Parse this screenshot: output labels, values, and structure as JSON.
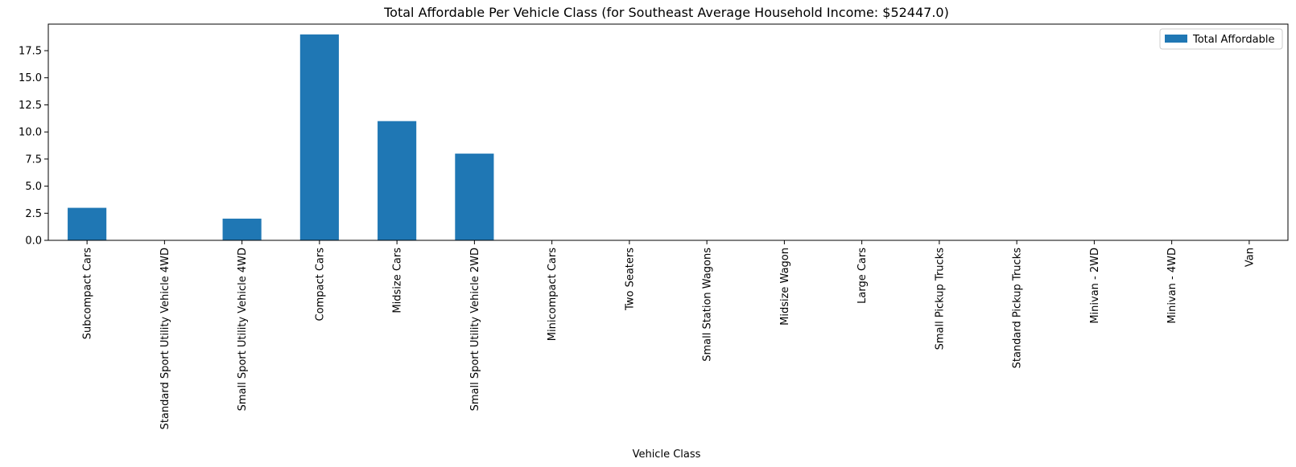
{
  "chart_data": {
    "type": "bar",
    "title": "Total Affordable Per Vehicle Class (for Southeast Average Household Income: $52447.0)",
    "xlabel": "Vehicle Class",
    "ylabel": "",
    "ylim": [
      0,
      19.95
    ],
    "yticks": [
      0.0,
      2.5,
      5.0,
      7.5,
      10.0,
      12.5,
      15.0,
      17.5
    ],
    "ytick_labels": [
      "0.0",
      "2.5",
      "5.0",
      "7.5",
      "10.0",
      "12.5",
      "15.0",
      "17.5"
    ],
    "categories": [
      "Subcompact Cars",
      "Standard Sport Utility Vehicle 4WD",
      "Small Sport Utility Vehicle 4WD",
      "Compact Cars",
      "Midsize Cars",
      "Small Sport Utility Vehicle 2WD",
      "Minicompact Cars",
      "Two Seaters",
      "Small Station Wagons",
      "Midsize Wagon",
      "Large Cars",
      "Small Pickup Trucks",
      "Standard Pickup Trucks",
      "Minivan - 2WD",
      "Minivan - 4WD",
      "Van"
    ],
    "series": [
      {
        "name": "Total Affordable",
        "values": [
          3,
          0,
          2,
          19,
          11,
          8,
          0,
          0,
          0,
          0,
          0,
          0,
          0,
          0,
          0,
          0
        ],
        "color": "#1f77b4"
      }
    ],
    "legend": {
      "position": "top-right"
    },
    "grid": false
  }
}
